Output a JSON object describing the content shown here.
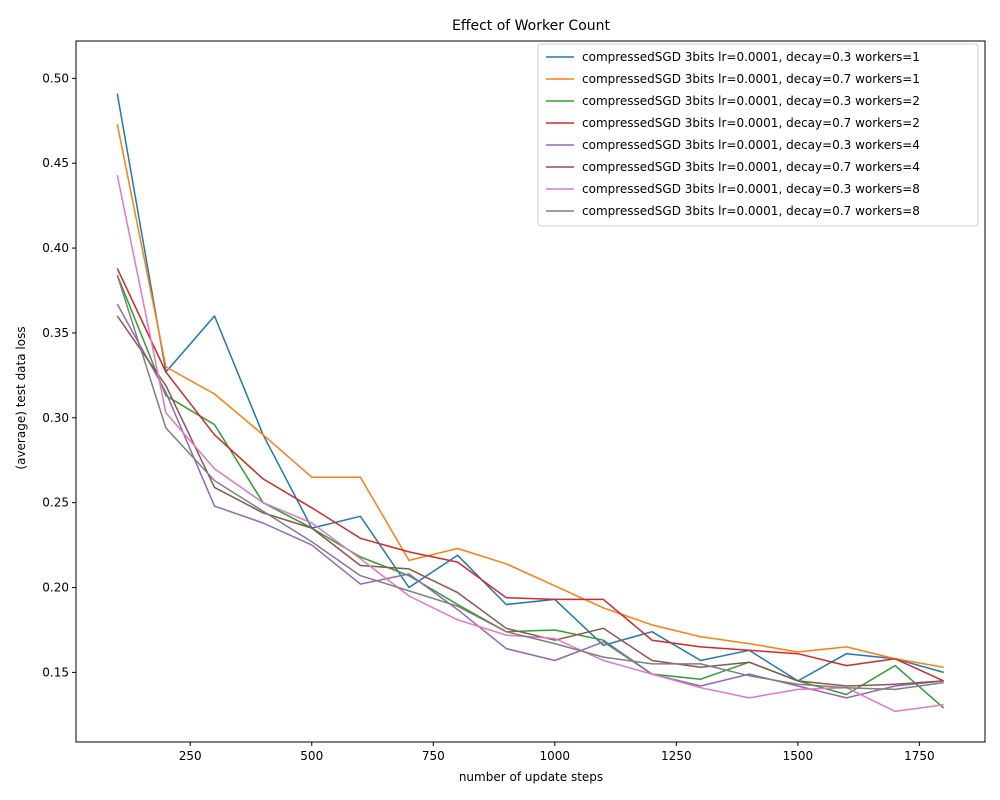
{
  "chart_data": {
    "type": "line",
    "title": "Effect of Worker Count",
    "xlabel": "number of update steps",
    "ylabel": "(average) test data loss",
    "xlim": [
      15,
      1885
    ],
    "ylim": [
      0.109,
      0.522
    ],
    "xticks": [
      250,
      500,
      750,
      1000,
      1250,
      1500,
      1750
    ],
    "yticks": [
      0.15,
      0.2,
      0.25,
      0.3,
      0.35,
      0.4,
      0.45,
      0.5
    ],
    "grid": false,
    "legend_position": "top-right",
    "x": [
      100,
      200,
      300,
      400,
      500,
      600,
      700,
      800,
      900,
      1000,
      1100,
      1200,
      1300,
      1400,
      1500,
      1600,
      1700,
      1800
    ],
    "series": [
      {
        "name": "compressedSGD 3bits lr=0.0001, decay=0.3 workers=1",
        "color": "#1f77b4",
        "values": [
          0.491,
          0.327,
          0.36,
          0.29,
          0.235,
          0.242,
          0.2,
          0.219,
          0.19,
          0.193,
          0.166,
          0.174,
          0.157,
          0.163,
          0.145,
          0.161,
          0.158,
          0.15
        ]
      },
      {
        "name": "compressedSGD 3bits lr=0.0001, decay=0.7 workers=1",
        "color": "#ff7f0e",
        "values": [
          0.473,
          0.33,
          0.314,
          0.29,
          0.265,
          0.265,
          0.216,
          0.223,
          0.214,
          0.201,
          0.188,
          0.178,
          0.171,
          0.167,
          0.162,
          0.165,
          0.158,
          0.153
        ]
      },
      {
        "name": "compressedSGD 3bits lr=0.0001, decay=0.3 workers=2",
        "color": "#2ca02c",
        "values": [
          0.384,
          0.313,
          0.296,
          0.25,
          0.235,
          0.218,
          0.207,
          0.19,
          0.174,
          0.175,
          0.169,
          0.149,
          0.146,
          0.156,
          0.145,
          0.137,
          0.154,
          0.129
        ]
      },
      {
        "name": "compressedSGD 3bits lr=0.0001, decay=0.7 workers=2",
        "color": "#d62728",
        "values": [
          0.388,
          0.327,
          0.29,
          0.264,
          0.247,
          0.229,
          0.221,
          0.215,
          0.194,
          0.193,
          0.193,
          0.169,
          0.165,
          0.163,
          0.161,
          0.154,
          0.158,
          0.145
        ]
      },
      {
        "name": "compressedSGD 3bits lr=0.0001, decay=0.3 workers=4",
        "color": "#9467bd",
        "values": [
          0.367,
          0.315,
          0.248,
          0.238,
          0.225,
          0.202,
          0.208,
          0.187,
          0.164,
          0.157,
          0.168,
          0.149,
          0.142,
          0.149,
          0.142,
          0.135,
          0.142,
          0.145
        ]
      },
      {
        "name": "compressedSGD 3bits lr=0.0001, decay=0.7 workers=4",
        "color": "#8c564b",
        "values": [
          0.36,
          0.319,
          0.259,
          0.244,
          0.235,
          0.213,
          0.211,
          0.197,
          0.176,
          0.169,
          0.176,
          0.157,
          0.153,
          0.156,
          0.145,
          0.142,
          0.143,
          0.145
        ]
      },
      {
        "name": "compressedSGD 3bits lr=0.0001, decay=0.3 workers=8",
        "color": "#e377c2",
        "values": [
          0.443,
          0.303,
          0.27,
          0.25,
          0.238,
          0.217,
          0.195,
          0.181,
          0.172,
          0.17,
          0.157,
          0.149,
          0.141,
          0.135,
          0.14,
          0.141,
          0.127,
          0.131
        ]
      },
      {
        "name": "compressedSGD 3bits lr=0.0001, decay=0.7 workers=8",
        "color": "#7f7f7f",
        "values": [
          0.384,
          0.294,
          0.263,
          0.245,
          0.227,
          0.207,
          0.198,
          0.189,
          0.174,
          0.167,
          0.159,
          0.155,
          0.155,
          0.148,
          0.143,
          0.141,
          0.14,
          0.144
        ]
      }
    ]
  }
}
